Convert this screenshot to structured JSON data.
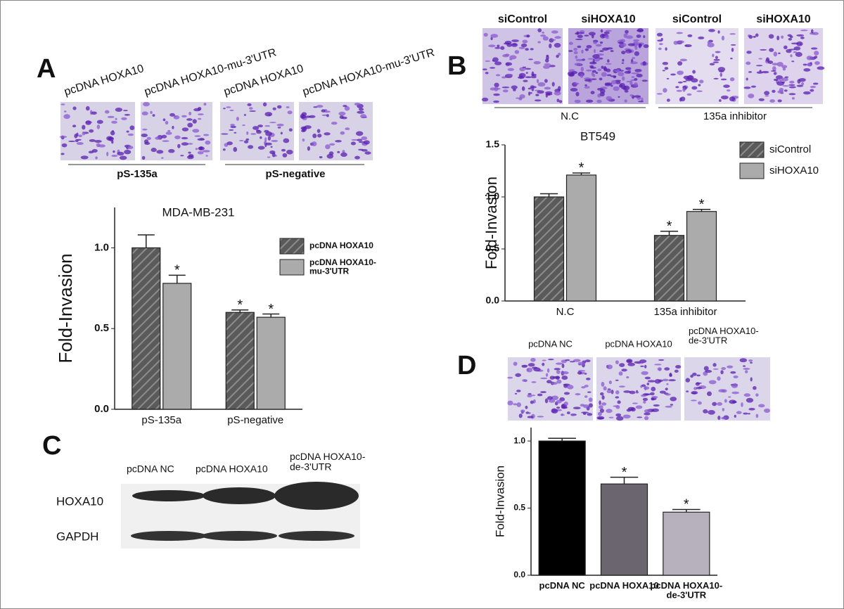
{
  "chart_data": [
    {
      "type": "bar",
      "title": "MDA-MB-231",
      "y_label": "Fold-Invasion",
      "categories": [
        "pS-135a",
        "pS-negative"
      ],
      "series": [
        {
          "name": "pcDNA HOXA10",
          "color": "#5a5a5a",
          "hatch": true,
          "values": [
            1.0,
            0.6
          ],
          "errors": [
            0.08,
            0.015
          ],
          "annotations": [
            null,
            "*"
          ]
        },
        {
          "name": "pcDNA HOXA10-mu-3'UTR",
          "color": "#ababab",
          "hatch": false,
          "values": [
            0.78,
            0.57
          ],
          "errors": [
            0.05,
            0.02
          ],
          "annotations": [
            "*",
            "*"
          ]
        }
      ],
      "ylim": [
        0,
        1.25
      ],
      "yticks": [
        {
          "value": 0,
          "label": "0.0"
        },
        0.5,
        {
          "value": 1,
          "label": "1.0"
        }
      ]
    },
    {
      "type": "bar",
      "title": "BT549",
      "y_label": "Fold-Invasion",
      "categories": [
        "N.C",
        "135a inhibitor"
      ],
      "series": [
        {
          "name": "siControl",
          "color": "#5a5a5a",
          "hatch": true,
          "values": [
            1.0,
            0.63
          ],
          "errors": [
            0.03,
            0.04
          ],
          "annotations": [
            null,
            "*"
          ]
        },
        {
          "name": "siHOXA10",
          "color": "#ababab",
          "hatch": false,
          "values": [
            1.21,
            0.86
          ],
          "errors": [
            0.02,
            0.02
          ],
          "annotations": [
            "*",
            "*"
          ]
        }
      ],
      "ylim": [
        0,
        1.5
      ],
      "yticks": [
        {
          "value": 0,
          "label": "0.0"
        },
        0.5,
        {
          "value": 1,
          "label": "1.0"
        },
        1.5
      ]
    },
    {
      "type": "bar",
      "y_label": "Fold-Invasion",
      "categories": [
        "pcDNA NC",
        "pcDNA HOXA10",
        "pcDNA HOXA10-de-3'UTR"
      ],
      "values": [
        1.0,
        0.68,
        0.47
      ],
      "errors": [
        0.02,
        0.05,
        0.02
      ],
      "annotations": [
        null,
        "*",
        "*"
      ],
      "colors": [
        "#000000",
        "#6b6570",
        "#b7b0bd"
      ],
      "ylim": [
        0,
        1.1
      ],
      "yticks": [
        {
          "value": 0,
          "label": "0.0"
        },
        0.5,
        {
          "value": 1,
          "label": "1.0"
        }
      ]
    }
  ],
  "figure": {
    "panel_a": {
      "letter": "A",
      "image_labels": [
        "pcDNA HOXA10",
        "pcDNA HOXA10-mu-3'UTR",
        "pcDNA HOXA10",
        "pcDNA HOXA10-mu-3'UTR"
      ],
      "groups": [
        "pS-135a",
        "pS-negative"
      ]
    },
    "panel_b": {
      "letter": "B",
      "image_labels": [
        "siControl",
        "siHOXA10",
        "siControl",
        "siHOXA10"
      ],
      "groups": [
        "N.C",
        "135a inhibitor"
      ]
    },
    "panel_c": {
      "letter": "C",
      "lanes": [
        "pcDNA NC",
        "pcDNA HOXA10",
        "pcDNA HOXA10-de-3'UTR"
      ],
      "rows": [
        "HOXA10",
        "GAPDH"
      ]
    },
    "panel_d": {
      "letter": "D",
      "image_labels": [
        "pcDNA NC",
        "pcDNA HOXA10",
        "pcDNA HOXA10-de-3'UTR"
      ]
    }
  }
}
